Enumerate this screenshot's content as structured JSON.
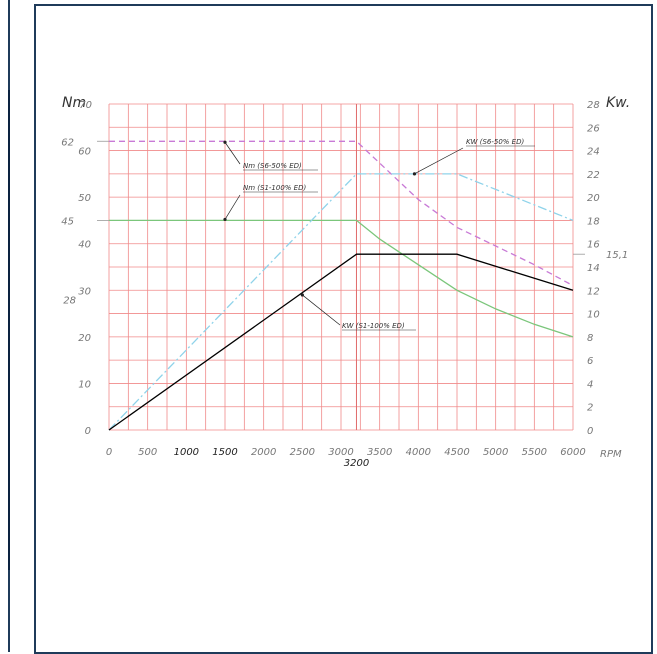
{
  "chart_data": {
    "type": "line",
    "xlabel": "RPM",
    "ylabel_left": "Nm",
    "ylabel_right": "Kw.",
    "xlim": [
      0,
      6000
    ],
    "ylim_left": [
      0,
      70
    ],
    "ylim_right": [
      0,
      28
    ],
    "x_ticks": [
      "0",
      "500",
      "1000",
      "1500",
      "2000",
      "2500",
      "3000",
      "3500",
      "4000",
      "4500",
      "5000",
      "5500",
      "6000"
    ],
    "y_left_ticks": [
      "0",
      "10",
      "20",
      "30",
      "40",
      "50",
      "60",
      "70"
    ],
    "y_right_ticks": [
      "0",
      "2",
      "4",
      "6",
      "8",
      "10",
      "12",
      "14",
      "16",
      "18",
      "20",
      "22",
      "24",
      "26",
      "28"
    ],
    "special_labels": {
      "left_62": "62",
      "left_45": "45",
      "left_28": "28",
      "right_15_1": "15,1",
      "x_3200": "3200"
    },
    "grid": true,
    "series": [
      {
        "name": "Nm (S6-50% ED)",
        "axis": "left",
        "style": "dashed",
        "color": "#c87ad6",
        "x": [
          0,
          3200,
          4000,
          4500,
          5000,
          5500,
          6000
        ],
        "y": [
          62,
          62,
          49.5,
          43.5,
          39.5,
          35.5,
          31
        ]
      },
      {
        "name": "Nm (S1-100% ED)",
        "axis": "left",
        "style": "solid",
        "color": "#7bc67b",
        "x": [
          0,
          3200,
          3500,
          4000,
          4500,
          5000,
          5500,
          6000
        ],
        "y": [
          45,
          45,
          41,
          35.5,
          30,
          26,
          22.7,
          20
        ]
      },
      {
        "name": "KW (S6-50% ED)",
        "axis": "right",
        "style": "dashdot",
        "color": "#8fd3ea",
        "x": [
          0,
          3200,
          4500,
          6000
        ],
        "y": [
          0,
          22,
          22,
          18
        ]
      },
      {
        "name": "KW (S1-100% ED)",
        "axis": "right",
        "style": "solid",
        "color": "#000000",
        "x": [
          0,
          3200,
          4500,
          6000
        ],
        "y": [
          0,
          15.1,
          15.1,
          12
        ]
      }
    ],
    "annotations": [
      {
        "text": "Nm (S6-50% ED)"
      },
      {
        "text": "Nm (S1-100% ED)"
      },
      {
        "text": "KW (S6-50% ED)"
      },
      {
        "text": "KW (S1-100% ED)"
      }
    ]
  }
}
